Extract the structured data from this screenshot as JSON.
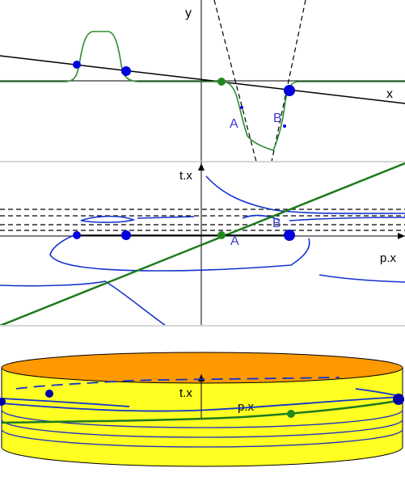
{
  "panel1": {
    "axis_x_label": "x",
    "axis_y_label": "y",
    "point_a_label": "A",
    "point_b_label": "B"
  },
  "panel2": {
    "axis_x_label": "p.x",
    "axis_y_label": "t.x",
    "point_a_label": "A",
    "point_b_label": "B"
  },
  "panel3": {
    "axis_x_label": "p.x",
    "axis_y_label": "t.x"
  },
  "colors": {
    "curve_green": "#2e8b2e",
    "line_green": "#1e7a1e",
    "point_blue": "#0000dd",
    "point_green": "#1e8a1e",
    "contour_blue": "#1133cc",
    "label_blue": "#3a3acc",
    "cylinder_top": "#ff9900",
    "cylinder_side": "#ffff22"
  }
}
